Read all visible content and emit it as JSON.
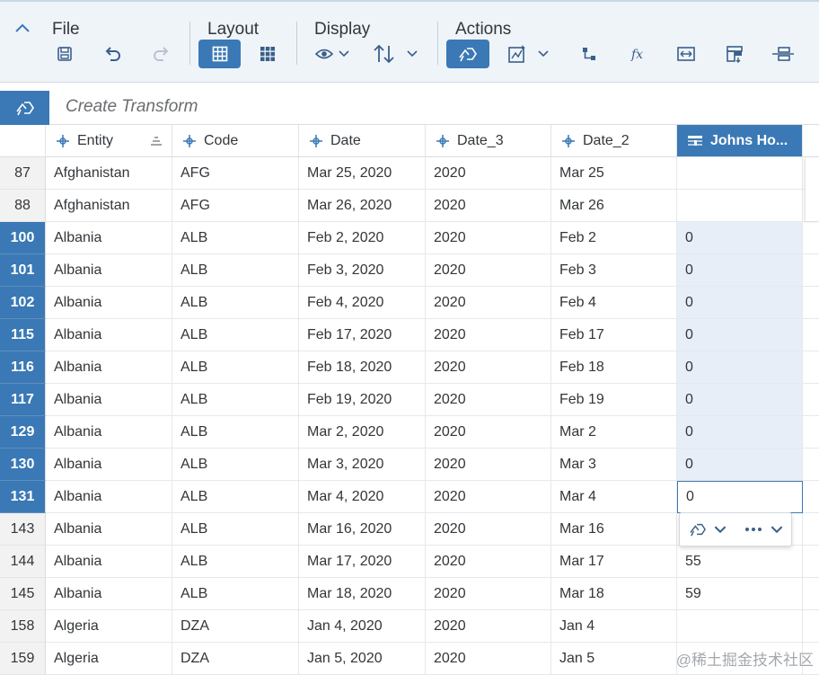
{
  "toolbar": {
    "groups": {
      "file": "File",
      "layout": "Layout",
      "display": "Display",
      "actions": "Actions"
    }
  },
  "transform_bar": {
    "placeholder": "Create Transform"
  },
  "columns": [
    {
      "label": "Entity",
      "icon": "dimension-icon"
    },
    {
      "label": "Code",
      "icon": "dimension-icon"
    },
    {
      "label": "Date",
      "icon": "dimension-icon"
    },
    {
      "label": "Date_3",
      "icon": "dimension-icon"
    },
    {
      "label": "Date_2",
      "icon": "dimension-icon"
    },
    {
      "label": "Johns Ho...",
      "icon": "measure-icon"
    }
  ],
  "rows": [
    {
      "num": "87",
      "selected": false,
      "cells": [
        "Afghanistan",
        "AFG",
        "Mar 25, 2020",
        "2020",
        "Mar 25",
        ""
      ]
    },
    {
      "num": "88",
      "selected": false,
      "cells": [
        "Afghanistan",
        "AFG",
        "Mar 26, 2020",
        "2020",
        "Mar 26",
        ""
      ]
    },
    {
      "num": "100",
      "selected": true,
      "cells": [
        "Albania",
        "ALB",
        "Feb 2, 2020",
        "2020",
        "Feb 2",
        "0"
      ]
    },
    {
      "num": "101",
      "selected": true,
      "cells": [
        "Albania",
        "ALB",
        "Feb 3, 2020",
        "2020",
        "Feb 3",
        "0"
      ]
    },
    {
      "num": "102",
      "selected": true,
      "cells": [
        "Albania",
        "ALB",
        "Feb 4, 2020",
        "2020",
        "Feb 4",
        "0"
      ]
    },
    {
      "num": "115",
      "selected": true,
      "cells": [
        "Albania",
        "ALB",
        "Feb 17, 2020",
        "2020",
        "Feb 17",
        "0"
      ]
    },
    {
      "num": "116",
      "selected": true,
      "cells": [
        "Albania",
        "ALB",
        "Feb 18, 2020",
        "2020",
        "Feb 18",
        "0"
      ]
    },
    {
      "num": "117",
      "selected": true,
      "cells": [
        "Albania",
        "ALB",
        "Feb 19, 2020",
        "2020",
        "Feb 19",
        "0"
      ]
    },
    {
      "num": "129",
      "selected": true,
      "cells": [
        "Albania",
        "ALB",
        "Mar 2, 2020",
        "2020",
        "Mar 2",
        "0"
      ]
    },
    {
      "num": "130",
      "selected": true,
      "cells": [
        "Albania",
        "ALB",
        "Mar 3, 2020",
        "2020",
        "Mar 3",
        "0"
      ]
    },
    {
      "num": "131",
      "selected": true,
      "cells": [
        "Albania",
        "ALB",
        "Mar 4, 2020",
        "2020",
        "Mar 4",
        "0"
      ]
    },
    {
      "num": "143",
      "selected": false,
      "cells": [
        "Albania",
        "ALB",
        "Mar 16, 2020",
        "2020",
        "Mar 16",
        ""
      ]
    },
    {
      "num": "144",
      "selected": false,
      "cells": [
        "Albania",
        "ALB",
        "Mar 17, 2020",
        "2020",
        "Mar 17",
        "55"
      ]
    },
    {
      "num": "145",
      "selected": false,
      "cells": [
        "Albania",
        "ALB",
        "Mar 18, 2020",
        "2020",
        "Mar 18",
        "59"
      ]
    },
    {
      "num": "158",
      "selected": false,
      "cells": [
        "Algeria",
        "DZA",
        "Jan 4, 2020",
        "2020",
        "Jan 4",
        ""
      ]
    },
    {
      "num": "159",
      "selected": false,
      "cells": [
        "Algeria",
        "DZA",
        "Jan 5, 2020",
        "2020",
        "Jan 5",
        ""
      ]
    }
  ],
  "watermark": "@稀土掘金技术社区",
  "colors": {
    "accent": "#3a79b5",
    "toolbar_bg": "#eff4f9",
    "selected_column_bg": "#e8eef7"
  }
}
